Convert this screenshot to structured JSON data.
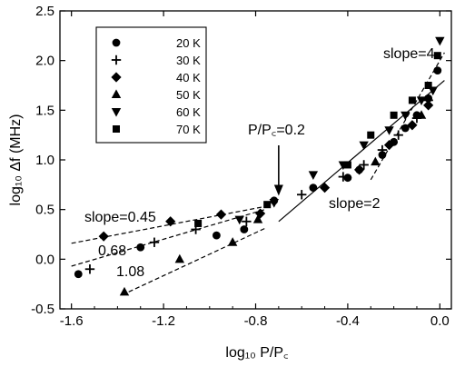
{
  "chart_data": {
    "type": "scatter",
    "xlabel": "log₁₀ P/P꜀",
    "ylabel": "log₁₀ Δf (MHz)",
    "xlim": [
      -1.65,
      0.05
    ],
    "ylim": [
      -0.5,
      2.5
    ],
    "x_ticks": [
      -1.6,
      -1.2,
      -0.8,
      -0.4,
      0.0
    ],
    "x_tick_labels": [
      "-1.6",
      "-1.2",
      "-0.8",
      "-0.4",
      "0.0"
    ],
    "y_ticks": [
      -0.5,
      0.0,
      0.5,
      1.0,
      1.5,
      2.0,
      2.5
    ],
    "y_tick_labels": [
      "-0.5",
      "0.0",
      "0.5",
      "1.0",
      "1.5",
      "2.0",
      "2.5"
    ],
    "legend_placement": "top-left",
    "grid": false,
    "series": [
      {
        "name": "20 K",
        "marker": "circle",
        "x": [
          -1.57,
          -1.3,
          -0.97,
          -0.85,
          -0.72,
          -0.55,
          -0.4,
          -0.35,
          -0.25,
          -0.2,
          -0.15,
          -0.1,
          -0.05,
          -0.01
        ],
        "y": [
          -0.15,
          0.12,
          0.24,
          0.3,
          0.59,
          0.72,
          0.82,
          0.9,
          1.05,
          1.18,
          1.32,
          1.45,
          1.62,
          1.9
        ]
      },
      {
        "name": "30 K",
        "marker": "plus",
        "x": [
          -1.52,
          -1.24,
          -1.06,
          -0.84,
          -0.6,
          -0.42,
          -0.33,
          -0.25,
          -0.18,
          -0.1,
          -0.05
        ],
        "y": [
          -0.1,
          0.17,
          0.3,
          0.38,
          0.65,
          0.83,
          0.95,
          1.1,
          1.25,
          1.42,
          1.6
        ]
      },
      {
        "name": "40 K",
        "marker": "diamond",
        "x": [
          -1.46,
          -1.17,
          -0.95,
          -0.78,
          -0.5,
          -0.35,
          -0.22,
          -0.12,
          -0.05
        ],
        "y": [
          0.23,
          0.38,
          0.45,
          0.46,
          0.72,
          0.9,
          1.15,
          1.35,
          1.55
        ]
      },
      {
        "name": "50 K",
        "marker": "triangle-up",
        "x": [
          -1.37,
          -1.13,
          -0.9,
          -0.79,
          -0.28,
          -0.08
        ],
        "y": [
          -0.33,
          0.0,
          0.17,
          0.4,
          0.98,
          1.45
        ]
      },
      {
        "name": "60 K",
        "marker": "triangle-down",
        "x": [
          -0.87,
          -0.72,
          -0.55,
          -0.42,
          -0.33,
          -0.22,
          -0.15,
          -0.08,
          -0.03,
          0.0
        ],
        "y": [
          0.4,
          0.57,
          0.85,
          0.95,
          1.15,
          1.3,
          1.45,
          1.6,
          1.7,
          2.2
        ]
      },
      {
        "name": "70 K",
        "marker": "square",
        "x": [
          -1.05,
          -0.75,
          -0.4,
          -0.3,
          -0.2,
          -0.12,
          -0.05,
          -0.01
        ],
        "y": [
          0.36,
          0.55,
          0.95,
          1.25,
          1.45,
          1.6,
          1.75,
          2.05
        ]
      }
    ],
    "fit_lines": [
      {
        "label": "slope=0.45",
        "x": [
          -1.6,
          -0.76
        ],
        "y": [
          0.16,
          0.53
        ],
        "style": "dashed"
      },
      {
        "label": "0.68",
        "x": [
          -1.6,
          -0.76
        ],
        "y": [
          -0.07,
          0.5
        ],
        "style": "dashed"
      },
      {
        "label": "1.08",
        "x": [
          -1.38,
          -0.76
        ],
        "y": [
          -0.36,
          0.31
        ],
        "style": "dashed"
      },
      {
        "label": "slope=2",
        "x": [
          -0.7,
          0.02
        ],
        "y": [
          0.38,
          1.8
        ],
        "style": "solid"
      },
      {
        "label": "slope=4",
        "x": [
          -0.3,
          0.02
        ],
        "y": [
          0.8,
          2.08
        ],
        "style": "dashed"
      }
    ],
    "annotations": [
      {
        "text": "P/P꜀=0.2",
        "arrow_to": [
          -0.7,
          0.62
        ]
      }
    ]
  }
}
